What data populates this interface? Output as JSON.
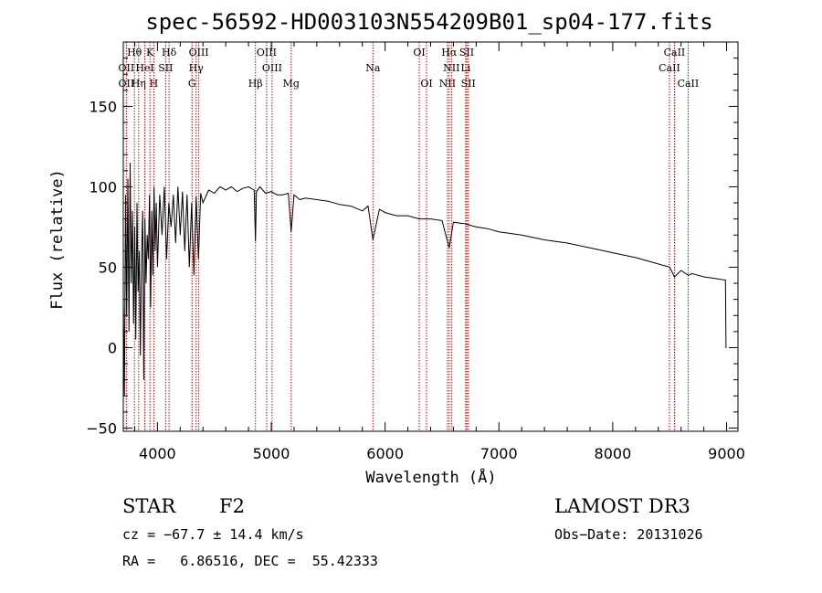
{
  "chart_data": {
    "type": "line",
    "title": "spec-56592-HD003103N554209B01_sp04-177.fits",
    "xlabel": "Wavelength (Å)",
    "ylabel": "Flux (relative)",
    "xlim": [
      3700,
      9100
    ],
    "ylim": [
      -52,
      190
    ],
    "xticks": [
      4000,
      5000,
      6000,
      7000,
      8000,
      9000
    ],
    "yticks": [
      -50,
      0,
      50,
      100,
      150
    ],
    "series": [
      {
        "name": "flux",
        "x": [
          3700,
          3710,
          3720,
          3730,
          3740,
          3750,
          3760,
          3770,
          3780,
          3790,
          3800,
          3810,
          3820,
          3830,
          3840,
          3850,
          3860,
          3870,
          3880,
          3890,
          3900,
          3910,
          3920,
          3930,
          3940,
          3950,
          3960,
          3970,
          3980,
          3990,
          4000,
          4020,
          4040,
          4060,
          4080,
          4100,
          4120,
          4140,
          4160,
          4180,
          4200,
          4220,
          4240,
          4260,
          4280,
          4300,
          4320,
          4340,
          4360,
          4380,
          4400,
          4450,
          4500,
          4550,
          4600,
          4650,
          4700,
          4750,
          4800,
          4850,
          4861,
          4870,
          4900,
          4950,
          5000,
          5050,
          5100,
          5150,
          5175,
          5200,
          5250,
          5300,
          5400,
          5500,
          5600,
          5700,
          5800,
          5850,
          5893,
          5950,
          6000,
          6100,
          6200,
          6300,
          6400,
          6500,
          6563,
          6600,
          6700,
          6800,
          6900,
          7000,
          7200,
          7400,
          7600,
          7800,
          8000,
          8200,
          8400,
          8500,
          8542,
          8600,
          8662,
          8700,
          8800,
          8900,
          8990,
          8995,
          9000
        ],
        "y": [
          30,
          -30,
          95,
          20,
          105,
          10,
          115,
          40,
          85,
          15,
          75,
          5,
          90,
          35,
          60,
          -5,
          55,
          85,
          -20,
          80,
          40,
          70,
          55,
          95,
          25,
          85,
          45,
          100,
          60,
          90,
          50,
          95,
          70,
          100,
          55,
          90,
          75,
          95,
          65,
          100,
          70,
          97,
          60,
          95,
          50,
          90,
          45,
          94,
          55,
          96,
          90,
          98,
          96,
          100,
          98,
          100,
          97,
          99,
          100,
          98,
          66,
          97,
          100,
          96,
          97,
          95,
          95,
          96,
          72,
          95,
          92,
          93,
          92,
          91,
          89,
          88,
          85,
          88,
          67,
          86,
          84,
          82,
          82,
          80,
          80,
          79,
          62,
          78,
          77,
          75,
          74,
          72,
          70,
          67,
          65,
          62,
          59,
          56,
          52,
          50,
          44,
          48,
          45,
          46,
          44,
          43,
          42,
          0,
          0
        ]
      }
    ],
    "spectral_lines": [
      {
        "label": "Hθ",
        "wavelength": 3798,
        "row": 1
      },
      {
        "label": "K",
        "wavelength": 3934,
        "row": 1
      },
      {
        "label": "Hδ",
        "wavelength": 4102,
        "row": 1
      },
      {
        "label": "OIII",
        "wavelength": 4363,
        "row": 1
      },
      {
        "label": "OIII",
        "wavelength": 4959,
        "row": 1
      },
      {
        "label": "OI",
        "wavelength": 6300,
        "row": 1
      },
      {
        "label": "Hα",
        "wavelength": 6563,
        "row": 1
      },
      {
        "label": "SII",
        "wavelength": 6717,
        "row": 1
      },
      {
        "label": "CaII",
        "wavelength": 8542,
        "row": 1
      },
      {
        "label": "OII",
        "wavelength": 3727,
        "row": 2
      },
      {
        "label": "HeI",
        "wavelength": 3889,
        "row": 2
      },
      {
        "label": "SII",
        "wavelength": 4072,
        "row": 2
      },
      {
        "label": "Hγ",
        "wavelength": 4340,
        "row": 2
      },
      {
        "label": "OIII",
        "wavelength": 5007,
        "row": 2
      },
      {
        "label": "Na",
        "wavelength": 5893,
        "row": 2
      },
      {
        "label": "NII",
        "wavelength": 6583,
        "row": 2
      },
      {
        "label": "Li",
        "wavelength": 6708,
        "row": 2
      },
      {
        "label": "CaII",
        "wavelength": 8498,
        "row": 2
      },
      {
        "label": "OII",
        "wavelength": 3727,
        "row": 3
      },
      {
        "label": "Hη",
        "wavelength": 3835,
        "row": 3
      },
      {
        "label": "H",
        "wavelength": 3968,
        "row": 3
      },
      {
        "label": "G",
        "wavelength": 4304,
        "row": 3
      },
      {
        "label": "Hβ",
        "wavelength": 4861,
        "row": 3
      },
      {
        "label": "Mg",
        "wavelength": 5175,
        "row": 3
      },
      {
        "label": "OI",
        "wavelength": 6364,
        "row": 3
      },
      {
        "label": "NII",
        "wavelength": 6548,
        "row": 3
      },
      {
        "label": "SII",
        "wavelength": 6731,
        "row": 3
      },
      {
        "label": "CaII",
        "wavelength": 8662,
        "row": 3
      }
    ]
  },
  "info": {
    "class_label": "STAR",
    "subclass": "F2",
    "survey": "LAMOST DR3",
    "cz_text": "cz = −67.7 ± 14.4 km/s",
    "obs_date": "Obs−Date: 20131026",
    "radec_text": "RA =   6.86516, DEC =  55.42333"
  },
  "colors": {
    "axis": "#000000",
    "spectrum": "#000000",
    "line_marker": "#cc0000"
  }
}
